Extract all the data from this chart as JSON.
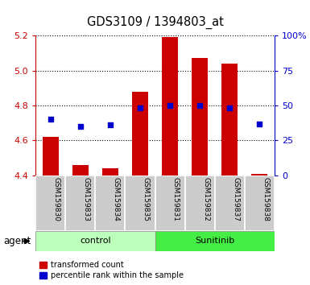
{
  "title": "GDS3109 / 1394803_at",
  "samples": [
    "GSM159830",
    "GSM159833",
    "GSM159834",
    "GSM159835",
    "GSM159831",
    "GSM159832",
    "GSM159837",
    "GSM159838"
  ],
  "groups": [
    "control",
    "control",
    "control",
    "control",
    "Sunitinib",
    "Sunitinib",
    "Sunitinib",
    "Sunitinib"
  ],
  "red_values": [
    4.62,
    4.46,
    4.44,
    4.88,
    5.19,
    5.07,
    5.04,
    4.41
  ],
  "blue_pct": [
    40,
    35,
    36,
    48,
    50,
    50,
    48,
    37
  ],
  "y_min": 4.4,
  "y_max": 5.2,
  "y_ticks": [
    4.4,
    4.6,
    4.8,
    5.0,
    5.2
  ],
  "right_ticks": [
    0,
    25,
    50,
    75,
    100
  ],
  "right_labels": [
    "0",
    "25",
    "50",
    "75",
    "100%"
  ],
  "bar_bottom": 4.4,
  "bar_color": "#cc0000",
  "blue_color": "#0000cc",
  "control_color": "#bbffbb",
  "sunitinib_color": "#44ee44",
  "tick_color_left": "#cc0000",
  "tick_color_right": "#0000cc",
  "sample_bg_color": "#cccccc",
  "legend_red_label": "transformed count",
  "legend_blue_label": "percentile rank within the sample",
  "group_label": "agent",
  "bar_width": 0.55
}
